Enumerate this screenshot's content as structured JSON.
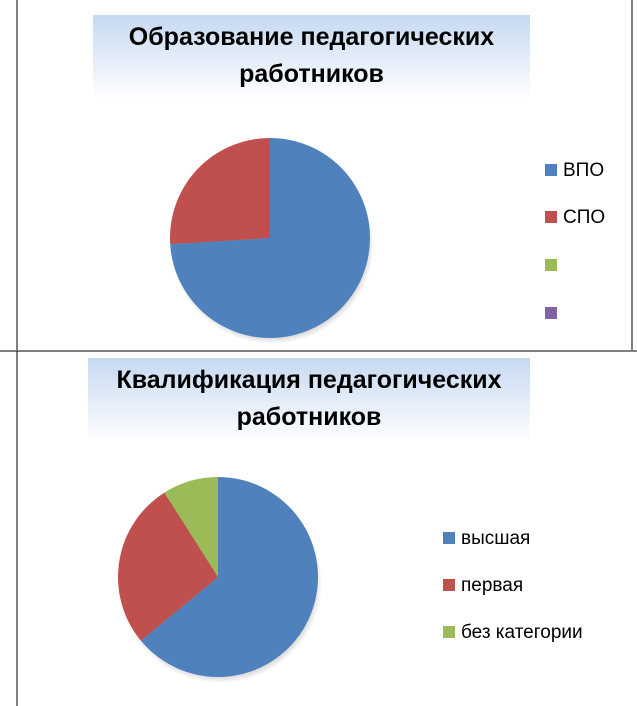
{
  "chart_data": [
    {
      "type": "pie",
      "title": "Образование педагогических работников",
      "categories": [
        "ВПО",
        "СПО",
        null,
        null
      ],
      "values": [
        74,
        26,
        0,
        0
      ],
      "colors": [
        "#4f81bd",
        "#c0504d",
        "#9bbb59",
        "#8064a2"
      ],
      "legend": "right"
    },
    {
      "type": "pie",
      "title": "Квалификация педагогических работников",
      "categories": [
        "высшая",
        "первая",
        "без категории"
      ],
      "values": [
        64,
        27,
        9
      ],
      "colors": [
        "#4f81bd",
        "#c0504d",
        "#9bbb59"
      ],
      "legend": "right"
    }
  ]
}
